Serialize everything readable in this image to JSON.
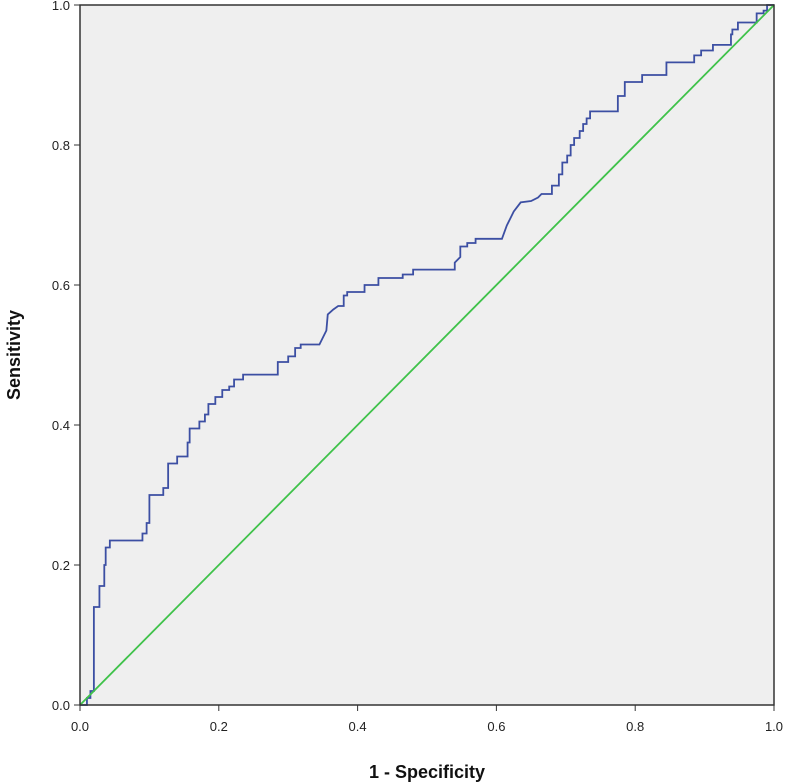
{
  "chart_data": {
    "type": "line",
    "title": "",
    "xlabel": "1 - Specificity",
    "ylabel": "Sensitivity",
    "xlim": [
      0,
      1
    ],
    "ylim": [
      0,
      1
    ],
    "x_ticks": [
      "0.0",
      "0.2",
      "0.4",
      "0.6",
      "0.8",
      "1.0"
    ],
    "y_ticks": [
      "0.0",
      "0.2",
      "0.4",
      "0.6",
      "0.8",
      "1.0"
    ],
    "grid": false,
    "background_color": "#efefef",
    "series": [
      {
        "color": "#3c4fa3",
        "step": true,
        "points": [
          [
            0.0,
            0.0
          ],
          [
            0.01,
            0.0
          ],
          [
            0.01,
            0.01
          ],
          [
            0.015,
            0.01
          ],
          [
            0.015,
            0.02
          ],
          [
            0.02,
            0.02
          ],
          [
            0.02,
            0.14
          ],
          [
            0.028,
            0.14
          ],
          [
            0.028,
            0.17
          ],
          [
            0.035,
            0.17
          ],
          [
            0.035,
            0.2
          ],
          [
            0.037,
            0.2
          ],
          [
            0.037,
            0.225
          ],
          [
            0.043,
            0.225
          ],
          [
            0.043,
            0.235
          ],
          [
            0.09,
            0.235
          ],
          [
            0.09,
            0.245
          ],
          [
            0.096,
            0.245
          ],
          [
            0.096,
            0.26
          ],
          [
            0.1,
            0.26
          ],
          [
            0.1,
            0.3
          ],
          [
            0.12,
            0.3
          ],
          [
            0.12,
            0.31
          ],
          [
            0.127,
            0.31
          ],
          [
            0.127,
            0.345
          ],
          [
            0.14,
            0.345
          ],
          [
            0.14,
            0.355
          ],
          [
            0.155,
            0.355
          ],
          [
            0.155,
            0.375
          ],
          [
            0.158,
            0.375
          ],
          [
            0.158,
            0.395
          ],
          [
            0.172,
            0.395
          ],
          [
            0.172,
            0.405
          ],
          [
            0.18,
            0.405
          ],
          [
            0.18,
            0.415
          ],
          [
            0.185,
            0.415
          ],
          [
            0.185,
            0.43
          ],
          [
            0.195,
            0.43
          ],
          [
            0.195,
            0.44
          ],
          [
            0.205,
            0.44
          ],
          [
            0.205,
            0.45
          ],
          [
            0.215,
            0.45
          ],
          [
            0.215,
            0.455
          ],
          [
            0.222,
            0.455
          ],
          [
            0.222,
            0.465
          ],
          [
            0.235,
            0.465
          ],
          [
            0.235,
            0.472
          ],
          [
            0.285,
            0.472
          ],
          [
            0.285,
            0.49
          ],
          [
            0.3,
            0.49
          ],
          [
            0.3,
            0.498
          ],
          [
            0.31,
            0.498
          ],
          [
            0.31,
            0.51
          ],
          [
            0.318,
            0.51
          ],
          [
            0.318,
            0.515
          ],
          [
            0.345,
            0.515
          ],
          [
            0.355,
            0.535
          ],
          [
            0.357,
            0.558
          ],
          [
            0.365,
            0.565
          ],
          [
            0.372,
            0.57
          ],
          [
            0.38,
            0.57
          ],
          [
            0.38,
            0.585
          ],
          [
            0.385,
            0.585
          ],
          [
            0.385,
            0.59
          ],
          [
            0.41,
            0.59
          ],
          [
            0.41,
            0.6
          ],
          [
            0.43,
            0.6
          ],
          [
            0.43,
            0.61
          ],
          [
            0.465,
            0.61
          ],
          [
            0.465,
            0.615
          ],
          [
            0.48,
            0.615
          ],
          [
            0.48,
            0.622
          ],
          [
            0.54,
            0.622
          ],
          [
            0.54,
            0.632
          ],
          [
            0.548,
            0.64
          ],
          [
            0.548,
            0.655
          ],
          [
            0.558,
            0.655
          ],
          [
            0.558,
            0.66
          ],
          [
            0.57,
            0.66
          ],
          [
            0.57,
            0.666
          ],
          [
            0.608,
            0.666
          ],
          [
            0.615,
            0.685
          ],
          [
            0.625,
            0.705
          ],
          [
            0.635,
            0.718
          ],
          [
            0.65,
            0.72
          ],
          [
            0.66,
            0.725
          ],
          [
            0.665,
            0.73
          ],
          [
            0.68,
            0.73
          ],
          [
            0.68,
            0.742
          ],
          [
            0.69,
            0.742
          ],
          [
            0.69,
            0.758
          ],
          [
            0.695,
            0.758
          ],
          [
            0.695,
            0.775
          ],
          [
            0.702,
            0.775
          ],
          [
            0.702,
            0.785
          ],
          [
            0.707,
            0.785
          ],
          [
            0.707,
            0.8
          ],
          [
            0.712,
            0.8
          ],
          [
            0.712,
            0.81
          ],
          [
            0.72,
            0.81
          ],
          [
            0.72,
            0.82
          ],
          [
            0.725,
            0.82
          ],
          [
            0.725,
            0.83
          ],
          [
            0.73,
            0.83
          ],
          [
            0.73,
            0.838
          ],
          [
            0.735,
            0.838
          ],
          [
            0.735,
            0.848
          ],
          [
            0.775,
            0.848
          ],
          [
            0.775,
            0.87
          ],
          [
            0.785,
            0.87
          ],
          [
            0.785,
            0.89
          ],
          [
            0.81,
            0.89
          ],
          [
            0.81,
            0.9
          ],
          [
            0.845,
            0.9
          ],
          [
            0.845,
            0.918
          ],
          [
            0.885,
            0.918
          ],
          [
            0.885,
            0.928
          ],
          [
            0.895,
            0.928
          ],
          [
            0.895,
            0.935
          ],
          [
            0.912,
            0.935
          ],
          [
            0.912,
            0.943
          ],
          [
            0.938,
            0.943
          ],
          [
            0.938,
            0.958
          ],
          [
            0.94,
            0.958
          ],
          [
            0.94,
            0.965
          ],
          [
            0.948,
            0.965
          ],
          [
            0.948,
            0.975
          ],
          [
            0.975,
            0.975
          ],
          [
            0.975,
            0.988
          ],
          [
            0.985,
            0.988
          ],
          [
            0.985,
            0.992
          ],
          [
            0.99,
            0.992
          ],
          [
            0.99,
            1.0
          ],
          [
            1.0,
            1.0
          ]
        ]
      },
      {
        "color": "#3fc24a",
        "step": false,
        "points": [
          [
            0,
            0
          ],
          [
            1,
            1
          ]
        ]
      }
    ]
  }
}
